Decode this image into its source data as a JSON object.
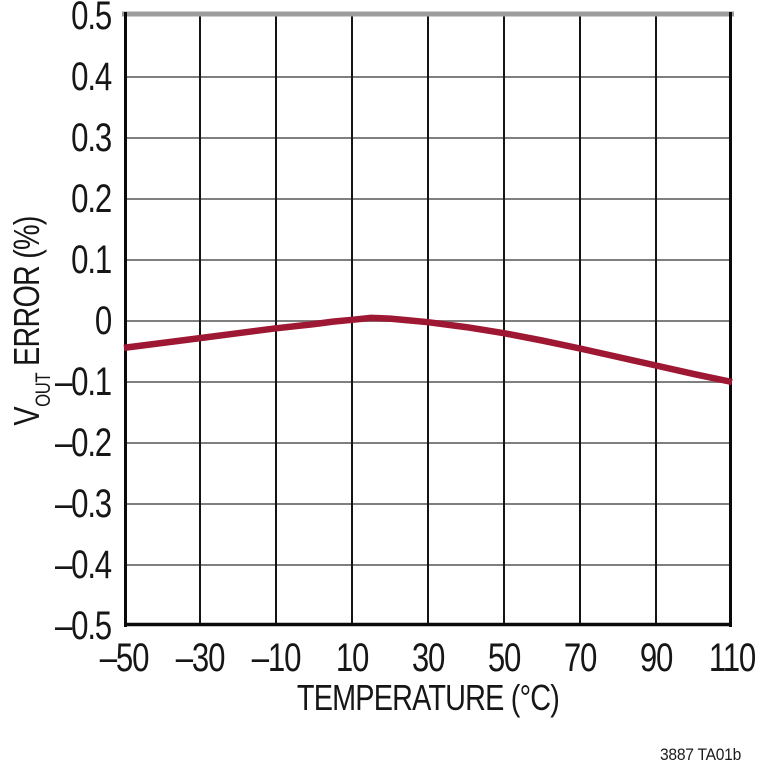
{
  "figure": {
    "attribution": "3887 TA01b"
  },
  "chart_data": {
    "type": "line",
    "title": "",
    "xlabel": "TEMPERATURE (°C)",
    "ylabel": {
      "prefix": "V",
      "sub": "OUT",
      "rest": " ERROR (%)"
    },
    "ylabel_text": "VOUT ERROR (%)",
    "xlim": [
      -50,
      110
    ],
    "ylim": [
      -0.5,
      0.5
    ],
    "grid": true,
    "legend": "none",
    "x_ticks": [
      -50,
      -30,
      -10,
      10,
      30,
      50,
      70,
      90,
      110
    ],
    "x_tick_labels": [
      "–50",
      "–30",
      "–10",
      "10",
      "30",
      "50",
      "70",
      "90",
      "110"
    ],
    "y_ticks": [
      0.5,
      0.4,
      0.3,
      0.2,
      0.1,
      0,
      -0.1,
      -0.2,
      -0.3,
      -0.4,
      -0.5
    ],
    "y_tick_labels": [
      "0.5",
      "0.4",
      "0.3",
      "0.2",
      "0.1",
      "0",
      "–0.1",
      "–0.2",
      "–0.3",
      "–0.4",
      "–0.5"
    ],
    "series": [
      {
        "name": "vout-error-curve",
        "x": [
          -50,
          -40,
          -30,
          -20,
          -10,
          0,
          5,
          10,
          15,
          20,
          25,
          30,
          40,
          50,
          60,
          70,
          80,
          90,
          100,
          110
        ],
        "y": [
          -0.044,
          -0.036,
          -0.028,
          -0.02,
          -0.012,
          -0.005,
          -0.001,
          0.002,
          0.005,
          0.004,
          0.001,
          -0.002,
          -0.01,
          -0.02,
          -0.032,
          -0.045,
          -0.059,
          -0.073,
          -0.087,
          -0.1
        ]
      }
    ],
    "colors": {
      "curve": "#9e1733",
      "h_grid": "#7f7f7f",
      "v_grid": "#141414",
      "axis": "#0a0a0a",
      "frame_top": "#9c9c9c",
      "text": "#161616",
      "background": "#ffffff"
    }
  }
}
